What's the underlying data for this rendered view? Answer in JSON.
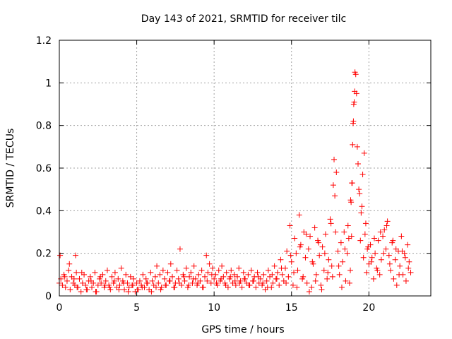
{
  "chart_data": {
    "type": "scatter",
    "title": "Day 143 of 2021, SRMTID for receiver tilc",
    "xlabel": "GPS time / hours",
    "ylabel": "SRMTID / TECUs",
    "xlim": [
      0,
      24
    ],
    "ylim": [
      0,
      1.2
    ],
    "xticks": [
      0,
      5,
      10,
      15,
      20
    ],
    "xtick_labels": [
      "0",
      "5",
      "10",
      "15",
      "20"
    ],
    "yticks": [
      0,
      0.2,
      0.4,
      0.6,
      0.8,
      1.0,
      1.2
    ],
    "ytick_labels": [
      "0",
      "0.2",
      "0.4",
      "0.6",
      "0.8",
      "1",
      "1.2"
    ],
    "grid": true,
    "marker": "plus",
    "color": "#ff0000",
    "series": [
      {
        "name": "SRMTID",
        "x": [
          0.0,
          0.1,
          0.2,
          0.3,
          0.4,
          0.5,
          0.6,
          0.7,
          0.8,
          0.9,
          1.0,
          1.05,
          1.1,
          1.2,
          1.3,
          1.4,
          1.5,
          1.6,
          1.7,
          1.8,
          1.9,
          2.0,
          2.1,
          2.2,
          2.3,
          2.4,
          2.5,
          2.6,
          2.7,
          2.8,
          2.9,
          3.0,
          3.1,
          3.2,
          3.3,
          3.4,
          3.5,
          3.6,
          3.7,
          3.8,
          3.9,
          4.0,
          4.1,
          4.2,
          4.3,
          4.4,
          4.5,
          4.6,
          4.7,
          4.8,
          4.9,
          5.0,
          5.1,
          5.2,
          5.3,
          5.4,
          5.5,
          5.6,
          5.7,
          5.8,
          5.9,
          6.0,
          6.1,
          6.2,
          6.3,
          6.4,
          6.5,
          6.6,
          6.7,
          6.8,
          6.9,
          7.0,
          7.1,
          7.2,
          7.3,
          7.4,
          7.5,
          7.6,
          7.7,
          7.8,
          7.9,
          8.0,
          8.1,
          8.2,
          8.3,
          8.4,
          8.5,
          8.6,
          8.7,
          8.8,
          8.9,
          9.0,
          9.1,
          9.2,
          9.3,
          9.4,
          9.5,
          9.6,
          9.7,
          9.8,
          9.9,
          10.0,
          10.1,
          10.2,
          10.3,
          10.4,
          10.5,
          10.6,
          10.7,
          10.8,
          10.9,
          11.0,
          11.1,
          11.2,
          11.3,
          11.4,
          11.5,
          11.6,
          11.7,
          11.8,
          11.9,
          12.0,
          12.1,
          12.2,
          12.3,
          12.4,
          12.5,
          12.6,
          12.7,
          12.8,
          12.9,
          13.0,
          13.1,
          13.2,
          13.3,
          13.4,
          13.5,
          13.6,
          13.7,
          13.8,
          13.9,
          14.0,
          14.1,
          14.2,
          14.3,
          14.4,
          14.5,
          14.6,
          14.7,
          14.8,
          14.9,
          15.0,
          15.1,
          15.2,
          15.3,
          15.4,
          15.5,
          15.6,
          15.7,
          15.8,
          15.9,
          16.0,
          16.1,
          16.2,
          16.3,
          16.4,
          16.5,
          16.6,
          16.7,
          16.8,
          16.9,
          17.0,
          17.1,
          17.2,
          17.3,
          17.4,
          17.5,
          17.6,
          17.7,
          17.8,
          17.9,
          18.0,
          18.1,
          18.2,
          18.3,
          18.4,
          18.5,
          18.6,
          18.7,
          18.8,
          18.85,
          18.9,
          18.95,
          19.0,
          19.05,
          19.1,
          19.2,
          19.3,
          19.4,
          19.5,
          19.6,
          19.7,
          19.8,
          19.9,
          20.0,
          20.1,
          20.2,
          20.3,
          20.4,
          20.5,
          20.6,
          20.7,
          20.8,
          20.9,
          21.0,
          21.1,
          21.2,
          21.3,
          21.4,
          21.5,
          21.6,
          21.7,
          21.8,
          21.9,
          22.0,
          22.1,
          22.2,
          22.3,
          22.4,
          22.5,
          22.6,
          22.7,
          0.05,
          0.35,
          0.65,
          0.95,
          1.15,
          1.45,
          1.75,
          2.05,
          2.35,
          2.65,
          2.95,
          3.25,
          3.55,
          3.85,
          4.15,
          4.45,
          4.75,
          5.05,
          5.35,
          5.65,
          5.95,
          6.25,
          6.55,
          6.85,
          7.15,
          7.45,
          7.75,
          8.05,
          8.35,
          8.65,
          8.95,
          9.25,
          9.55,
          9.85,
          10.15,
          10.45,
          10.75,
          11.05,
          11.35,
          11.65,
          11.95,
          12.25,
          12.55,
          12.85,
          13.15,
          13.45,
          13.75,
          14.05,
          14.35,
          14.65,
          14.95,
          15.15,
          15.35,
          15.55,
          15.75,
          15.95,
          16.15,
          16.35,
          16.55,
          16.75,
          16.95,
          17.15,
          17.35,
          17.55,
          17.65,
          17.75,
          17.85,
          18.05,
          18.25,
          18.45,
          18.65,
          18.75,
          18.82,
          18.88,
          18.92,
          18.98,
          19.02,
          19.08,
          19.15,
          19.25,
          19.35,
          19.45,
          19.55,
          19.65,
          19.75,
          19.85,
          19.95,
          20.15,
          20.35,
          20.55,
          20.75,
          20.95,
          21.15,
          21.35,
          21.55,
          21.75,
          21.95,
          22.15,
          22.35,
          22.55
        ],
        "y": [
          0.06,
          0.08,
          0.05,
          0.1,
          0.04,
          0.07,
          0.12,
          0.03,
          0.09,
          0.06,
          0.05,
          0.19,
          0.11,
          0.04,
          0.08,
          0.02,
          0.06,
          0.1,
          0.05,
          0.03,
          0.07,
          0.09,
          0.04,
          0.06,
          0.11,
          0.02,
          0.05,
          0.08,
          0.06,
          0.1,
          0.04,
          0.07,
          0.12,
          0.05,
          0.03,
          0.09,
          0.06,
          0.11,
          0.04,
          0.08,
          0.05,
          0.13,
          0.07,
          0.03,
          0.1,
          0.06,
          0.04,
          0.09,
          0.05,
          0.08,
          0.02,
          0.06,
          0.03,
          0.07,
          0.05,
          0.1,
          0.04,
          0.08,
          0.06,
          0.03,
          0.11,
          0.07,
          0.05,
          0.09,
          0.14,
          0.06,
          0.1,
          0.04,
          0.12,
          0.08,
          0.05,
          0.11,
          0.07,
          0.15,
          0.09,
          0.04,
          0.06,
          0.12,
          0.08,
          0.22,
          0.05,
          0.1,
          0.07,
          0.13,
          0.04,
          0.09,
          0.11,
          0.06,
          0.14,
          0.08,
          0.05,
          0.1,
          0.07,
          0.12,
          0.04,
          0.09,
          0.19,
          0.11,
          0.15,
          0.06,
          0.13,
          0.08,
          0.1,
          0.05,
          0.12,
          0.07,
          0.14,
          0.09,
          0.06,
          0.11,
          0.04,
          0.08,
          0.12,
          0.06,
          0.1,
          0.05,
          0.09,
          0.13,
          0.07,
          0.04,
          0.11,
          0.08,
          0.06,
          0.1,
          0.05,
          0.12,
          0.07,
          0.09,
          0.04,
          0.11,
          0.06,
          0.08,
          0.05,
          0.1,
          0.03,
          0.07,
          0.12,
          0.09,
          0.04,
          0.06,
          0.14,
          0.08,
          0.11,
          0.05,
          0.17,
          0.1,
          0.07,
          0.13,
          0.21,
          0.09,
          0.33,
          0.16,
          0.05,
          0.27,
          0.2,
          0.12,
          0.38,
          0.24,
          0.08,
          0.3,
          0.18,
          0.06,
          0.22,
          0.28,
          0.04,
          0.15,
          0.32,
          0.1,
          0.26,
          0.19,
          0.05,
          0.23,
          0.12,
          0.29,
          0.08,
          0.17,
          0.36,
          0.14,
          0.52,
          0.47,
          0.58,
          0.21,
          0.1,
          0.25,
          0.16,
          0.3,
          0.07,
          0.2,
          0.27,
          0.12,
          0.44,
          0.53,
          0.71,
          0.82,
          0.91,
          1.05,
          0.95,
          0.62,
          0.48,
          0.39,
          0.57,
          0.67,
          0.34,
          0.22,
          0.15,
          0.24,
          0.18,
          0.08,
          0.2,
          0.13,
          0.26,
          0.1,
          0.17,
          0.28,
          0.31,
          0.22,
          0.35,
          0.19,
          0.12,
          0.25,
          0.08,
          0.17,
          0.05,
          0.21,
          0.14,
          0.28,
          0.1,
          0.2,
          0.07,
          0.24,
          0.16,
          0.11,
          0.19,
          0.09,
          0.15,
          0.08,
          0.04,
          0.11,
          0.03,
          0.07,
          0.02,
          0.09,
          0.05,
          0.04,
          0.07,
          0.03,
          0.06,
          0.02,
          0.05,
          0.03,
          0.04,
          0.06,
          0.02,
          0.04,
          0.03,
          0.05,
          0.07,
          0.04,
          0.06,
          0.09,
          0.05,
          0.08,
          0.06,
          0.04,
          0.07,
          0.1,
          0.06,
          0.08,
          0.05,
          0.09,
          0.07,
          0.06,
          0.08,
          0.05,
          0.07,
          0.09,
          0.06,
          0.04,
          0.1,
          0.08,
          0.13,
          0.06,
          0.19,
          0.11,
          0.04,
          0.23,
          0.09,
          0.29,
          0.02,
          0.16,
          0.07,
          0.25,
          0.03,
          0.2,
          0.11,
          0.34,
          0.09,
          0.64,
          0.3,
          0.14,
          0.04,
          0.22,
          0.33,
          0.06,
          0.45,
          0.28,
          0.53,
          0.81,
          0.9,
          0.96,
          1.04,
          0.7,
          0.5,
          0.26,
          0.42,
          0.18,
          0.29,
          0.11,
          0.23,
          0.16,
          0.27,
          0.12,
          0.3,
          0.2,
          0.33,
          0.15,
          0.26,
          0.22,
          0.1,
          0.21,
          0.18,
          0.13
        ]
      }
    ]
  }
}
